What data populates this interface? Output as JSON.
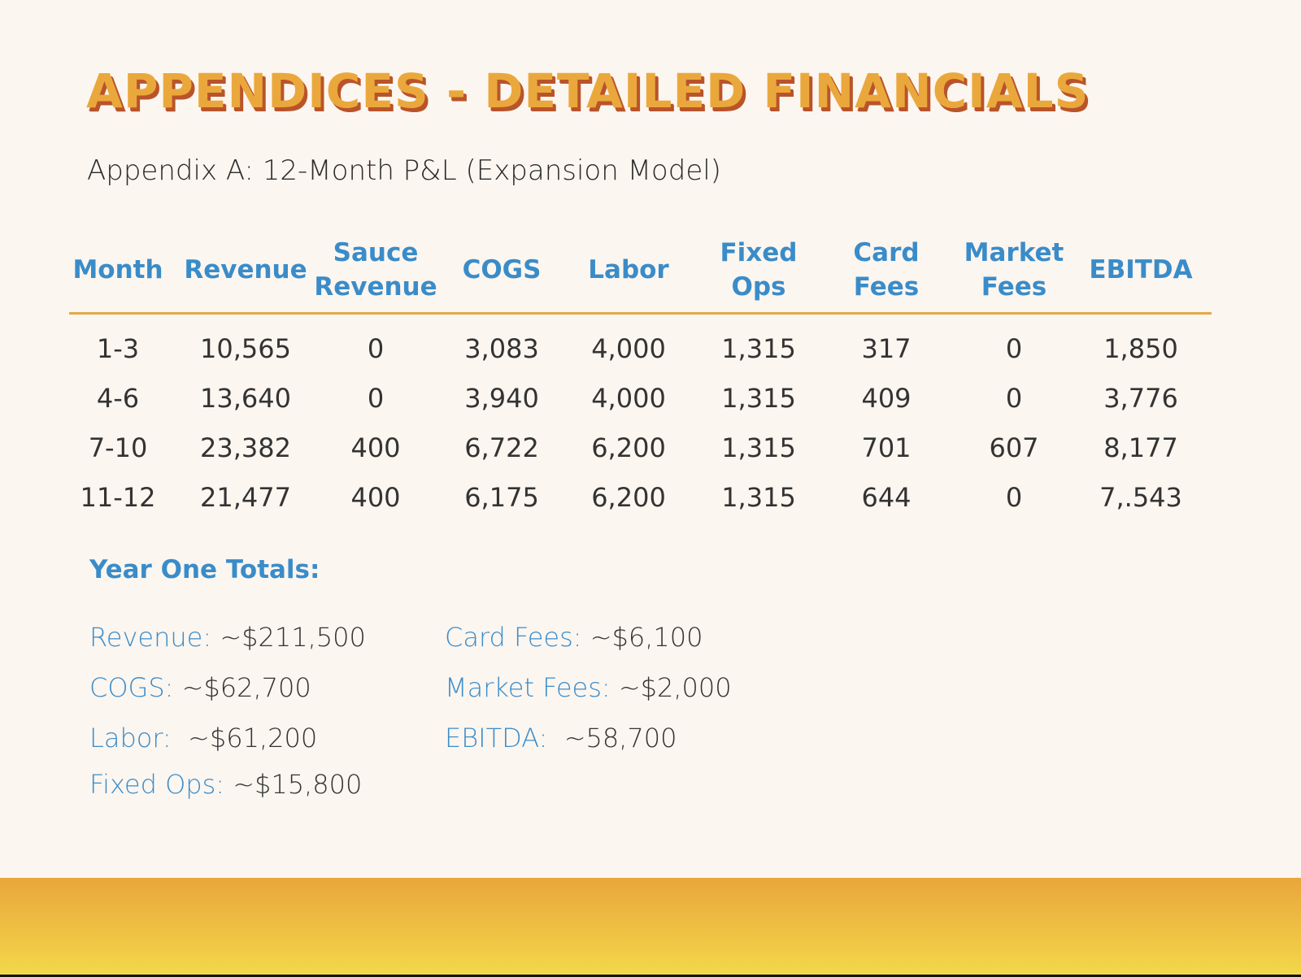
{
  "title": "APPENDICES - DETAILED FINANCIALS",
  "subtitle": "Appendix A: 12-Month P&L (Expansion Model)",
  "table": {
    "headers": [
      "Month",
      "Revenue",
      "Sauce\nRevenue",
      "COGS",
      "Labor",
      "Fixed\nOps",
      "Card\nFees",
      "Market\nFees",
      "EBITDA"
    ],
    "rows": [
      [
        "1-3",
        "10,565",
        "0",
        "3,083",
        "4,000",
        "1,315",
        "317",
        "0",
        "1,850"
      ],
      [
        "4-6",
        "13,640",
        "0",
        "3,940",
        "4,000",
        "1,315",
        "409",
        "0",
        "3,776"
      ],
      [
        "7-10",
        "23,382",
        "400",
        "6,722",
        "6,200",
        "1,315",
        "701",
        "607",
        "8,177"
      ],
      [
        "11-12",
        "21,477",
        "400",
        "6,175",
        "6,200",
        "1,315",
        "644",
        "0",
        "7,.543"
      ]
    ]
  },
  "totals": {
    "title": "Year One Totals:",
    "items": [
      {
        "label": "Revenue:",
        "value": " ~$211,500"
      },
      {
        "label": "COGS:",
        "value": " ~$62,700"
      },
      {
        "label": "Labor:",
        "value": "  ~$61,200"
      },
      {
        "label": "Fixed Ops:",
        "value": " ~$15,800"
      },
      {
        "label": "Card Fees:",
        "value": " ~$6,100"
      },
      {
        "label": "Market Fees:",
        "value": " ~$2,000"
      },
      {
        "label": "EBITDA:",
        "value": "  ~58,700"
      }
    ]
  },
  "colors": {
    "title": "#eaa83c",
    "title_shadow": "#b9542a",
    "accent_blue": "#3a8cc9",
    "rule": "#e2a945",
    "background": "#fcf6f0"
  }
}
